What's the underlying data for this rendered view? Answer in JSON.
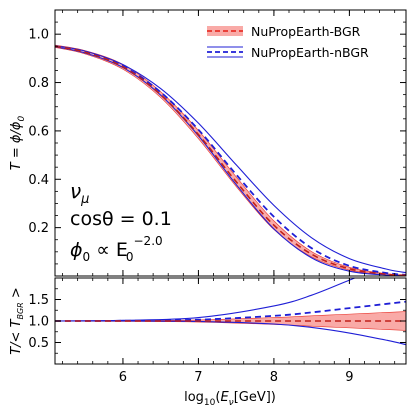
{
  "chart_data": [
    {
      "type": "line",
      "panel": "main",
      "xlabel_main": "log",
      "xlabel_sub": "10",
      "xlabel_open": "(",
      "xlabel_E": "E",
      "xlabel_nu": "ν",
      "xlabel_unit": "[GeV])",
      "ylabel": "T = ϕ/ϕ",
      "ylabel_sub": "0",
      "xlim": [
        5.1,
        9.75
      ],
      "ylim": [
        0.0,
        1.1
      ],
      "xticks": [
        "6",
        "7",
        "8",
        "9"
      ],
      "xtick_values": [
        6,
        7,
        8,
        9
      ],
      "yticks": [
        "0.2",
        "0.4",
        "0.6",
        "0.8",
        "1.0"
      ],
      "ytick_values": [
        0.2,
        0.4,
        0.6,
        0.8,
        1.0
      ],
      "annotations": {
        "flavor": "ν",
        "flavor_sub": "μ",
        "costheta": "cosθ = 0.1",
        "flux_lhs": "ϕ",
        "flux_lhs_sub": "0",
        "flux_mid": " ∝ E",
        "flux_mid_sub": "0",
        "flux_exp": "−2.0"
      },
      "legend": [
        {
          "label": "NuPropEarth-BGR",
          "color": "#e8322a",
          "fill": "#f89b98",
          "style": "dashed-with-band"
        },
        {
          "label": "NuPropEarth-nBGR",
          "color": "#1f1fd6",
          "style": "dashed-with-lines"
        }
      ],
      "legend_position": "top-right",
      "series": [
        {
          "name": "NuPropEarth-BGR",
          "x": [
            5.1,
            5.5,
            6.0,
            6.5,
            7.0,
            7.5,
            8.0,
            8.5,
            9.0,
            9.5,
            9.75
          ],
          "y_center": [
            0.95,
            0.925,
            0.865,
            0.75,
            0.585,
            0.39,
            0.21,
            0.09,
            0.03,
            0.007,
            0.003
          ],
          "y_low": [
            0.945,
            0.918,
            0.855,
            0.738,
            0.568,
            0.37,
            0.192,
            0.079,
            0.024,
            0.005,
            0.002
          ],
          "y_high": [
            0.955,
            0.932,
            0.875,
            0.762,
            0.602,
            0.41,
            0.228,
            0.101,
            0.036,
            0.009,
            0.004
          ]
        },
        {
          "name": "NuPropEarth-nBGR",
          "x": [
            5.1,
            5.5,
            6.0,
            6.5,
            7.0,
            7.5,
            8.0,
            8.5,
            9.0,
            9.5,
            9.75
          ],
          "y_center": [
            0.95,
            0.926,
            0.868,
            0.76,
            0.605,
            0.42,
            0.245,
            0.115,
            0.042,
            0.012,
            0.005
          ],
          "y_low": [
            0.948,
            0.922,
            0.862,
            0.748,
            0.58,
            0.378,
            0.195,
            0.075,
            0.02,
            0.004,
            0.001
          ],
          "y_high": [
            0.952,
            0.93,
            0.874,
            0.775,
            0.632,
            0.46,
            0.292,
            0.158,
            0.072,
            0.028,
            0.014
          ]
        }
      ]
    },
    {
      "type": "line",
      "panel": "ratio",
      "ylabel": "T/< T",
      "ylabel_sub": "BGR",
      "ylabel_end": " >",
      "xlim": [
        5.1,
        9.75
      ],
      "ylim": [
        0.0,
        2.0
      ],
      "yticks": [
        "0.5",
        "1.0",
        "1.5"
      ],
      "ytick_values": [
        0.5,
        1.0,
        1.5
      ],
      "series": [
        {
          "name": "NuPropEarth-BGR",
          "x": [
            5.1,
            6.0,
            7.0,
            8.0,
            8.5,
            9.0,
            9.5,
            9.75
          ],
          "y_center": [
            1.0,
            1.0,
            1.0,
            1.0,
            1.0,
            1.0,
            1.0,
            1.0
          ],
          "y_low": [
            0.995,
            0.99,
            0.975,
            0.92,
            0.88,
            0.84,
            0.8,
            0.78
          ],
          "y_high": [
            1.005,
            1.01,
            1.025,
            1.08,
            1.12,
            1.16,
            1.2,
            1.22
          ]
        },
        {
          "name": "NuPropEarth-nBGR",
          "x": [
            5.1,
            6.0,
            7.0,
            8.0,
            8.5,
            9.0,
            9.5,
            9.75
          ],
          "y_center": [
            1.0,
            1.005,
            1.03,
            1.12,
            1.2,
            1.3,
            1.4,
            1.45
          ],
          "y_low": [
            1.0,
            1.0,
            0.99,
            0.93,
            0.85,
            0.72,
            0.55,
            0.45
          ],
          "y_high": [
            1.0,
            1.015,
            1.08,
            1.35,
            1.6,
            1.95,
            2.3,
            2.5
          ]
        }
      ]
    }
  ]
}
